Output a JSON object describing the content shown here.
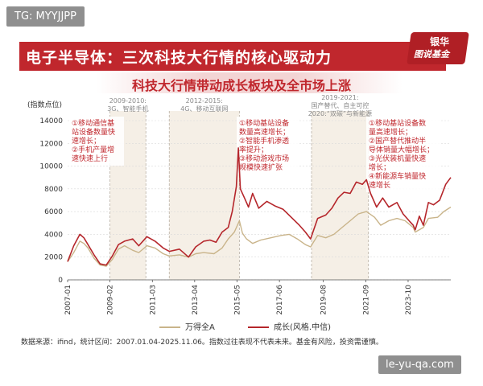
{
  "watermarks": {
    "top_left": "TG: MYYJJPP",
    "bottom_right": "le-yu-qa.com"
  },
  "header": {
    "title": "电子半导体：三次科技大行情的核心驱动力",
    "badge_line1": "银华",
    "badge_line2": "图说基金"
  },
  "colors": {
    "accent": "#c0272d",
    "growth_line": "#b5262b",
    "wande_line": "#c9b48a",
    "band": "#f5efe6"
  },
  "chart_data": {
    "type": "line",
    "title": "科技大行情带动成长板块及全市场上涨",
    "ylabel": "(指数点位)",
    "ylim": [
      0,
      14000
    ],
    "yticks": [
      0,
      2000,
      4000,
      6000,
      8000,
      10000,
      12000,
      14000
    ],
    "xlim": [
      2007.0,
      2025.85
    ],
    "x_tick_labels": [
      "2007-01",
      "2009-02",
      "2011-03",
      "2013-04",
      "2015-05",
      "2017-06",
      "2019-08",
      "2021-09",
      "2023-10"
    ],
    "x_tick_positions": [
      2007.0,
      2009.08,
      2011.17,
      2013.25,
      2015.33,
      2017.42,
      2019.58,
      2021.67,
      2023.75
    ],
    "grid": true,
    "legend_position": "bottom",
    "series": [
      {
        "name": "万得全A",
        "color": "#c9b48a",
        "x": [
          2007.0,
          2007.3,
          2007.6,
          2007.8,
          2008.0,
          2008.3,
          2008.6,
          2008.9,
          2009.2,
          2009.5,
          2009.8,
          2010.2,
          2010.5,
          2010.9,
          2011.3,
          2011.7,
          2012.0,
          2012.5,
          2012.95,
          2013.3,
          2013.7,
          2014.2,
          2014.6,
          2014.9,
          2015.2,
          2015.45,
          2015.6,
          2015.8,
          2016.1,
          2016.5,
          2017.0,
          2017.5,
          2017.9,
          2018.3,
          2018.7,
          2018.95,
          2019.3,
          2019.7,
          2020.1,
          2020.5,
          2020.9,
          2021.3,
          2021.7,
          2022.1,
          2022.4,
          2022.8,
          2023.2,
          2023.6,
          2024.0,
          2024.1,
          2024.5,
          2024.75,
          2025.2,
          2025.5,
          2025.85
        ],
        "y": [
          1600,
          2400,
          3400,
          3200,
          2800,
          1900,
          1300,
          1200,
          1800,
          2700,
          3000,
          2600,
          2400,
          3000,
          2800,
          2300,
          2100,
          2200,
          2000,
          2300,
          2400,
          2300,
          2800,
          3600,
          4200,
          5200,
          4100,
          3600,
          3200,
          3500,
          3700,
          3900,
          4000,
          3600,
          3100,
          2900,
          3900,
          3700,
          4000,
          4600,
          5200,
          5800,
          6000,
          5500,
          4800,
          5200,
          5400,
          5200,
          4600,
          4200,
          4600,
          5400,
          5500,
          6000,
          6400
        ]
      },
      {
        "name": "成长(风格.中信)",
        "color": "#b5262b",
        "x": [
          2007.0,
          2007.3,
          2007.6,
          2007.8,
          2008.0,
          2008.3,
          2008.6,
          2008.9,
          2009.2,
          2009.5,
          2009.8,
          2010.2,
          2010.5,
          2010.9,
          2011.3,
          2011.7,
          2012.0,
          2012.5,
          2012.95,
          2013.3,
          2013.7,
          2014.0,
          2014.3,
          2014.6,
          2014.9,
          2015.1,
          2015.3,
          2015.4,
          2015.5,
          2015.7,
          2015.9,
          2016.1,
          2016.4,
          2016.8,
          2017.2,
          2017.6,
          2018.0,
          2018.4,
          2018.7,
          2018.95,
          2019.3,
          2019.7,
          2020.0,
          2020.3,
          2020.6,
          2020.9,
          2021.2,
          2021.5,
          2021.7,
          2021.9,
          2022.2,
          2022.5,
          2022.8,
          2023.2,
          2023.5,
          2023.8,
          2024.0,
          2024.1,
          2024.3,
          2024.5,
          2024.75,
          2025.0,
          2025.3,
          2025.6,
          2025.85
        ],
        "y": [
          1600,
          3000,
          4000,
          3700,
          3100,
          2200,
          1400,
          1300,
          2100,
          3100,
          3400,
          3600,
          3000,
          3800,
          3400,
          2800,
          2500,
          2700,
          2000,
          2900,
          3400,
          3500,
          3300,
          4200,
          4600,
          6000,
          8200,
          11600,
          8000,
          7200,
          6400,
          7600,
          6300,
          6900,
          6500,
          6200,
          5500,
          4800,
          4200,
          3600,
          5400,
          5700,
          6300,
          7200,
          7700,
          7600,
          8600,
          8400,
          8800,
          7600,
          6400,
          7200,
          6400,
          6800,
          5800,
          5200,
          4800,
          4400,
          5600,
          4800,
          6800,
          6600,
          7000,
          8400,
          9000
        ]
      }
    ],
    "bands": [
      {
        "range": [
          2009.08,
          2010.85
        ],
        "label": "2009-2010:",
        "sublabel": "3G、智能手机"
      },
      {
        "range": [
          2012.0,
          2015.45
        ],
        "label": "2012-2015:",
        "sublabel": "4G、移动互联网"
      },
      {
        "range": [
          2019.0,
          2021.8
        ],
        "label": "2019-2021:",
        "sublabel": "国产替代、自主可控",
        "sublabel2": "2020:“双碳”与新能源"
      }
    ],
    "annotations": [
      {
        "lines": [
          "①移动通信基",
          "站设备数量快",
          "速增长；",
          "②手机产量增",
          "速快速上行"
        ]
      },
      {
        "lines": [
          "①移动基站设备",
          "数量高速增长；",
          "②智能手机渗透",
          "率提升；",
          "③移动游戏市场",
          "规模快速扩张"
        ]
      },
      {
        "lines": [
          "①移动基站设备数",
          "量高速增长；",
          "②国产替代推动半",
          "导体销量大幅增长；",
          "③光伏装机量快速",
          "增长；",
          "④新能源车销量快",
          "速增长"
        ]
      }
    ]
  },
  "footnote": "数据来源：ifind，统计区间：2007.01.04-2025.11.06。指数过往表现不代表未来。基金有风险，投资需谨慎。"
}
